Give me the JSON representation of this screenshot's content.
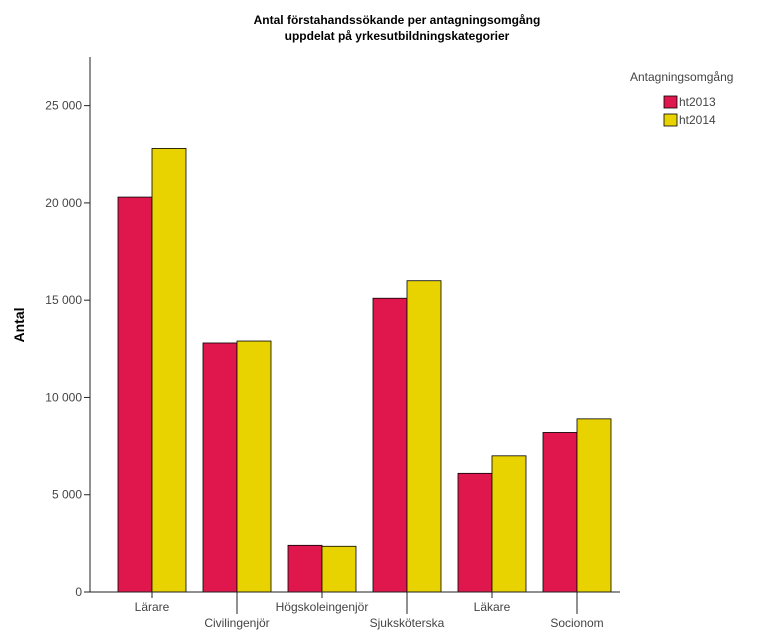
{
  "chart_data": {
    "type": "bar",
    "title": [
      "Antal förstahandssökande per antagningsomgång",
      "uppdelat på yrkesutbildningskategorier"
    ],
    "ylabel": "Antal",
    "xlabel": "",
    "ylim": [
      0,
      27500
    ],
    "yticks": [
      0,
      5000,
      10000,
      15000,
      20000,
      25000
    ],
    "ytick_labels": [
      "0",
      "5 000",
      "10 000",
      "15 000",
      "20 000",
      "25 000"
    ],
    "grid": false,
    "legend_position": "top-right",
    "legend_title": "Antagningsomgång",
    "categories": [
      "Lärare",
      "Civilingenjör",
      "Högskoleingenjör",
      "Sjuksköterska",
      "Läkare",
      "Socionom"
    ],
    "series": [
      {
        "name": "ht2013",
        "color": "#e0174d",
        "values": [
          20300,
          12800,
          2400,
          15100,
          6100,
          8200
        ]
      },
      {
        "name": "ht2014",
        "color": "#e8d300",
        "values": [
          22800,
          12900,
          2350,
          16000,
          7000,
          8900
        ]
      }
    ]
  }
}
